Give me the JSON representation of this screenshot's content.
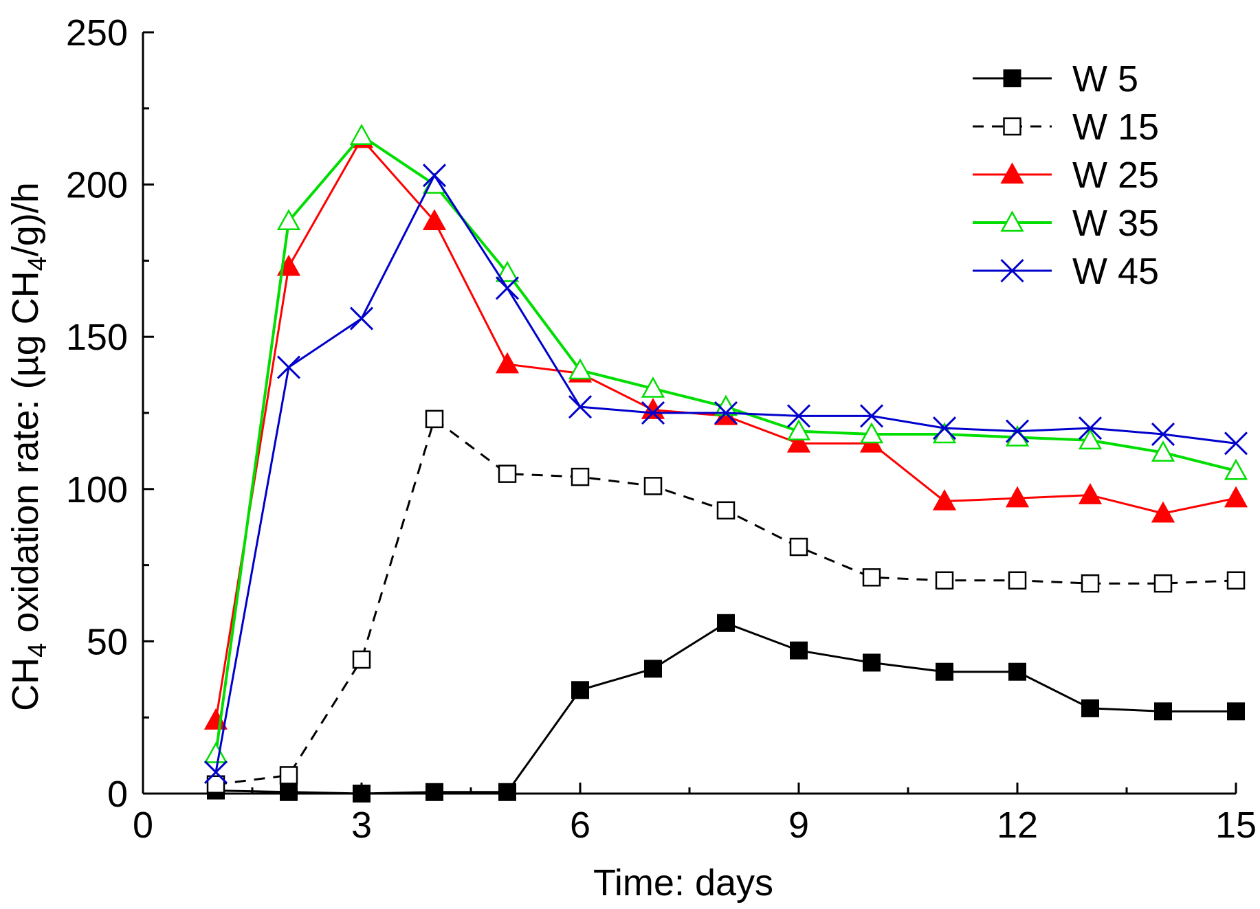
{
  "chart_data": {
    "type": "line",
    "title": "",
    "xlabel": "Time: days",
    "ylabel": {
      "part1": "CH",
      "sub1": "4",
      "part2": " oxidation rate: (µg CH",
      "sub2": "4",
      "part3": "/g)/h"
    },
    "xlim": [
      0,
      15
    ],
    "ylim": [
      0,
      250
    ],
    "xticks": [
      0,
      3,
      6,
      9,
      12,
      15
    ],
    "yticks": [
      0,
      50,
      100,
      150,
      200,
      250
    ],
    "grid": false,
    "legend_position": "top-right",
    "x": [
      1,
      2,
      3,
      4,
      5,
      6,
      7,
      8,
      9,
      10,
      11,
      12,
      13,
      14,
      15
    ],
    "series": [
      {
        "name": "W 5",
        "color": "#000000",
        "marker": "square-filled",
        "dash": "solid",
        "values": [
          1,
          0.5,
          0,
          0.5,
          0.5,
          34,
          41,
          56,
          47,
          43,
          40,
          40,
          28,
          27,
          27
        ]
      },
      {
        "name": "W 15",
        "color": "#000000",
        "marker": "square-open",
        "dash": "dashed",
        "values": [
          3,
          6,
          44,
          123,
          105,
          104,
          101,
          93,
          81,
          71,
          70,
          70,
          69,
          69,
          70
        ]
      },
      {
        "name": "W 25",
        "color": "#ff0000",
        "marker": "triangle-filled",
        "dash": "solid",
        "values": [
          24,
          173,
          215,
          188,
          141,
          138,
          126,
          124,
          115,
          115,
          96,
          97,
          98,
          92,
          97
        ]
      },
      {
        "name": "W 35",
        "color": "#00dd00",
        "marker": "triangle-open",
        "dash": "solid",
        "values": [
          13,
          188,
          216,
          200,
          171,
          139,
          133,
          127,
          119,
          118,
          118,
          117,
          116,
          112,
          106
        ]
      },
      {
        "name": "W 45",
        "color": "#0000cc",
        "marker": "x",
        "dash": "solid",
        "values": [
          7,
          140,
          156,
          203,
          166,
          127,
          125,
          125,
          124,
          124,
          120,
          119,
          120,
          118,
          115
        ]
      }
    ]
  }
}
